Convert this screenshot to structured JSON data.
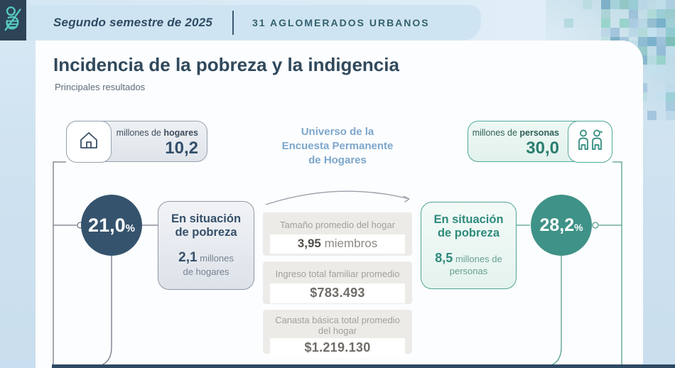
{
  "header": {
    "period": "Segundo semestre de 2025",
    "coverage": "31 AGLOMERADOS URBANOS"
  },
  "title": "Incidencia de la pobreza y la indigencia",
  "subtitle": "Principales resultados",
  "universe": {
    "line1": "Universo de la",
    "line2": "Encuesta Permanente",
    "line3": "de Hogares"
  },
  "households": {
    "label_prefix": "millones de ",
    "label_bold": "hogares",
    "value": "10,2",
    "icon": "house-icon"
  },
  "persons": {
    "label_prefix": "millones de ",
    "label_bold": "personas",
    "value": "30,0",
    "icon": "people-icon"
  },
  "poverty_households": {
    "pct_value": "21,0",
    "pct_symbol": "%",
    "title_line1": "En situación",
    "title_line2": "de pobreza",
    "amount": "2,1",
    "amount_unit_line1": " millones",
    "amount_unit_line2": "de hogares"
  },
  "poverty_persons": {
    "pct_value": "28,2",
    "pct_symbol": "%",
    "title_line1": "En situación",
    "title_line2": "de pobreza",
    "amount": "8,5",
    "amount_unit_line1": " millones de",
    "amount_unit_line2": "personas"
  },
  "household_stats": [
    {
      "label": "Tamaño promedio del hogar",
      "value_bold": "3,95",
      "value_rest": " miembros"
    },
    {
      "label": "Ingreso total familiar promedio",
      "value_bold": "",
      "value_rest": "$783.493"
    },
    {
      "label": "Canasta básica total promedio del hogar",
      "value_bold": "",
      "value_rest": "$1.219.130"
    }
  ],
  "colors": {
    "accent_navy": "#35536d",
    "accent_teal": "#3f9287",
    "logo_bg": "#2d4356",
    "logo_glyph": "#56cabf",
    "header_bar": "#cfe4f2",
    "line_gray": "#6e7984",
    "line_teal": "#4f9e90",
    "bottom_bar": "#2e4a63",
    "mosaic_palette": [
      "#9fc4dd",
      "#b7d5e6",
      "#8fb8d4",
      "#7fc4c9",
      "#8fd0c5",
      "#6aa7c4",
      "#a8d8d2",
      "#c2e0ee",
      "#5e9bb8",
      "#74b9b0"
    ]
  }
}
